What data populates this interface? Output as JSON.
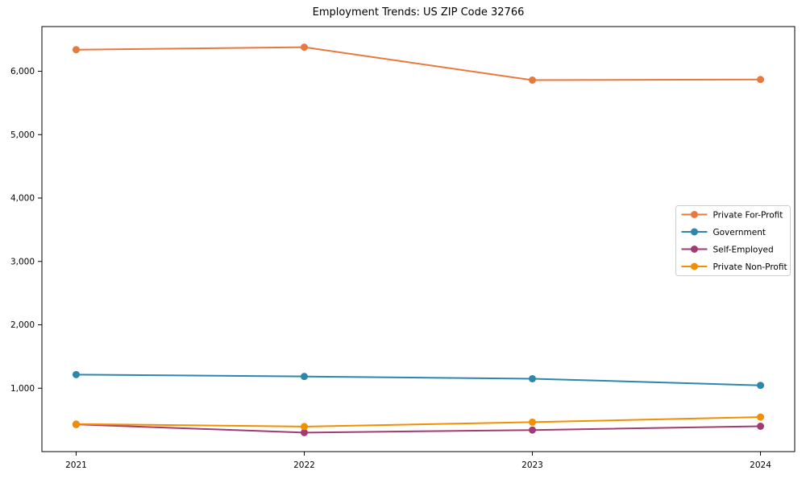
{
  "chart_data": {
    "type": "line",
    "title": "Employment Trends: US ZIP Code 32766",
    "x": [
      2021,
      2022,
      2023,
      2024
    ],
    "x_tick_labels": [
      "2021",
      "2022",
      "2023",
      "2024"
    ],
    "series": [
      {
        "name": "Private For-Profit",
        "color": "#E8793E",
        "values": [
          6340,
          6380,
          5860,
          5870
        ]
      },
      {
        "name": "Government",
        "color": "#2E86AB",
        "values": [
          1215,
          1185,
          1150,
          1045
        ]
      },
      {
        "name": "Self-Employed",
        "color": "#A23B72",
        "values": [
          430,
          300,
          340,
          400
        ]
      },
      {
        "name": "Private Non-Profit",
        "color": "#F18F01",
        "values": [
          435,
          395,
          465,
          545
        ]
      }
    ],
    "yticks": [
      1000,
      2000,
      3000,
      4000,
      5000,
      6000
    ],
    "ytick_labels": [
      "1,000",
      "2,000",
      "3,000",
      "4,000",
      "5,000",
      "6,000"
    ],
    "xlim": [
      2020.85,
      2024.15
    ],
    "ylim": [
      0,
      6705
    ],
    "grid": false,
    "legend": {
      "position": "center right"
    },
    "axis_color": "#000000",
    "tick_label_color": "#000000",
    "legend_border_color": "#cccccc"
  }
}
